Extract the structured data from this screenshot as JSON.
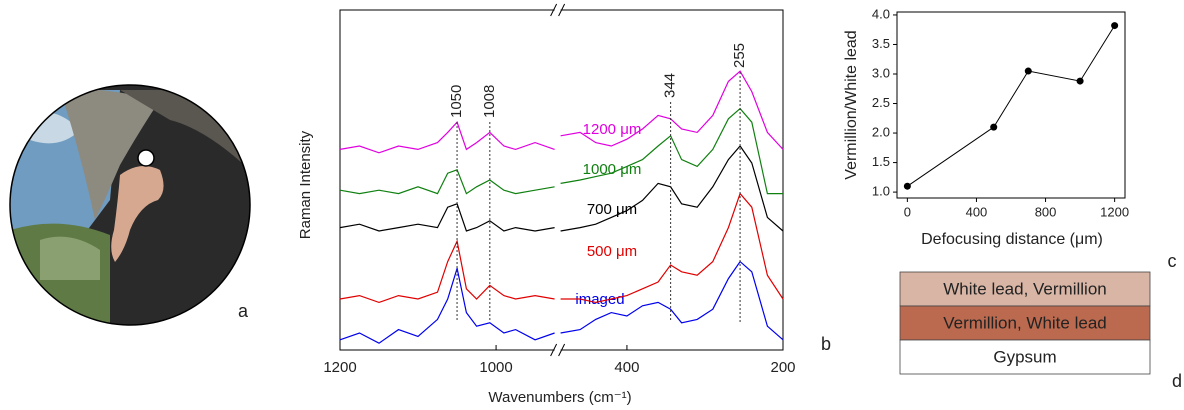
{
  "panel_labels": [
    "a",
    "b",
    "c",
    "d"
  ],
  "chart_data": [
    {
      "type": "line",
      "xlabel": "Wavenumbers (cm⁻¹)",
      "ylabel": "Raman Intensity",
      "xlim": [
        1200,
        200
      ],
      "xbreak": [
        925,
        485
      ],
      "ylim": [
        0,
        10
      ],
      "xticks": [
        1200,
        1000,
        400,
        200
      ],
      "x": [
        1200,
        1175,
        1150,
        1125,
        1100,
        1075,
        1062,
        1050,
        1038,
        1025,
        1008,
        990,
        975,
        950,
        925,
        485,
        460,
        440,
        420,
        400,
        380,
        360,
        344,
        330,
        310,
        290,
        270,
        255,
        240,
        220,
        200
      ],
      "series": [
        {
          "name": "imaged",
          "color": "#0000ee",
          "values": [
            0.3,
            0.5,
            0.2,
            0.6,
            0.4,
            0.9,
            1.5,
            2.4,
            1.1,
            0.7,
            0.8,
            0.5,
            0.6,
            0.3,
            0.5,
            0.5,
            0.6,
            0.9,
            1.1,
            1.0,
            1.3,
            1.4,
            1.2,
            0.8,
            0.9,
            1.2,
            2.1,
            2.6,
            2.3,
            0.7,
            0.3
          ]
        },
        {
          "name": "500 μm",
          "color": "#e00000",
          "values": [
            1.5,
            1.6,
            1.4,
            1.6,
            1.5,
            1.7,
            2.6,
            3.2,
            1.8,
            1.5,
            1.9,
            1.6,
            1.5,
            1.6,
            1.5,
            1.5,
            1.5,
            1.4,
            1.5,
            1.6,
            1.8,
            2.0,
            2.5,
            2.3,
            2.2,
            2.6,
            3.6,
            4.6,
            4.2,
            2.2,
            1.5
          ]
        },
        {
          "name": "700 μm",
          "color": "#000000",
          "values": [
            3.6,
            3.7,
            3.5,
            3.6,
            3.7,
            3.6,
            4.2,
            4.3,
            3.5,
            3.6,
            3.8,
            3.5,
            3.6,
            3.5,
            3.6,
            3.5,
            3.6,
            3.7,
            3.9,
            4.1,
            4.4,
            4.9,
            4.8,
            4.3,
            4.2,
            4.8,
            5.6,
            6.0,
            5.5,
            3.9,
            3.5
          ]
        },
        {
          "name": "1000 μm",
          "color": "#108010",
          "values": [
            4.7,
            4.6,
            4.7,
            4.6,
            4.8,
            4.6,
            5.2,
            5.3,
            4.6,
            4.8,
            5.0,
            4.7,
            4.6,
            4.7,
            4.8,
            4.9,
            5.0,
            5.1,
            5.2,
            5.4,
            5.6,
            6.0,
            6.3,
            5.6,
            5.4,
            5.9,
            6.8,
            7.1,
            6.7,
            4.6,
            4.6
          ]
        },
        {
          "name": "1200 μm",
          "color": "#e000e0",
          "values": [
            5.9,
            6.0,
            5.8,
            6.0,
            5.9,
            6.1,
            6.4,
            6.7,
            5.9,
            6.1,
            6.4,
            6.0,
            5.9,
            6.1,
            5.9,
            6.3,
            6.4,
            6.1,
            6.0,
            6.2,
            6.5,
            6.9,
            6.8,
            6.5,
            6.4,
            6.9,
            7.9,
            8.2,
            7.6,
            6.4,
            5.9
          ]
        }
      ],
      "peak_labels": [
        1050,
        1008,
        344,
        255
      ]
    },
    {
      "type": "line",
      "xlabel": "Defocusing distance (μm)",
      "ylabel": "Vermillion/White lead",
      "x": [
        0,
        500,
        700,
        1000,
        1200
      ],
      "values": [
        1.1,
        2.1,
        3.05,
        2.88,
        3.82
      ],
      "color": "#000000",
      "xlim": [
        -60,
        1260
      ],
      "ylim": [
        0.9,
        4.05
      ],
      "xticks": [
        0,
        400,
        800,
        1200
      ],
      "yticks": [
        {
          "value": 1,
          "label": "1.0"
        },
        {
          "value": 1.5,
          "label": "1.5"
        },
        {
          "value": 2,
          "label": "2.0"
        },
        {
          "value": 2.5,
          "label": "2.5"
        },
        {
          "value": 3,
          "label": "3.0"
        },
        {
          "value": 3.5,
          "label": "3.5"
        },
        {
          "value": 4,
          "label": "4.0"
        }
      ]
    }
  ],
  "layers": [
    {
      "label": "White lead, Vermillion",
      "color": "#d9b5a5"
    },
    {
      "label": "Vermillion, White lead",
      "color": "#bb6a4f"
    },
    {
      "label": "Gypsum",
      "color": "#ffffff"
    }
  ]
}
